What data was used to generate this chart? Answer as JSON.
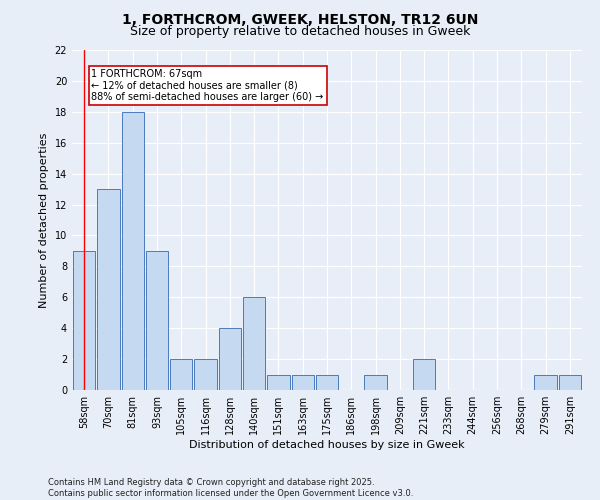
{
  "title": "1, FORTHCROM, GWEEK, HELSTON, TR12 6UN",
  "subtitle": "Size of property relative to detached houses in Gweek",
  "xlabel": "Distribution of detached houses by size in Gweek",
  "ylabel": "Number of detached properties",
  "categories": [
    "58sqm",
    "70sqm",
    "81sqm",
    "93sqm",
    "105sqm",
    "116sqm",
    "128sqm",
    "140sqm",
    "151sqm",
    "163sqm",
    "175sqm",
    "186sqm",
    "198sqm",
    "209sqm",
    "221sqm",
    "233sqm",
    "244sqm",
    "256sqm",
    "268sqm",
    "279sqm",
    "291sqm"
  ],
  "values": [
    9,
    13,
    18,
    9,
    2,
    2,
    4,
    6,
    1,
    1,
    1,
    0,
    1,
    0,
    2,
    0,
    0,
    0,
    0,
    1,
    1
  ],
  "bar_color": "#c5d9f0",
  "bar_edge_color": "#4a7abf",
  "background_color": "#e8eef8",
  "grid_color": "#ffffff",
  "ylim": [
    0,
    22
  ],
  "yticks": [
    0,
    2,
    4,
    6,
    8,
    10,
    12,
    14,
    16,
    18,
    20,
    22
  ],
  "annotation_text": "1 FORTHCROM: 67sqm\n← 12% of detached houses are smaller (8)\n88% of semi-detached houses are larger (60) →",
  "annotation_box_color": "#ffffff",
  "annotation_box_edgecolor": "#cc0000",
  "footer": "Contains HM Land Registry data © Crown copyright and database right 2025.\nContains public sector information licensed under the Open Government Licence v3.0.",
  "title_fontsize": 10,
  "subtitle_fontsize": 9,
  "tick_fontsize": 7,
  "ylabel_fontsize": 8,
  "xlabel_fontsize": 8,
  "footer_fontsize": 6,
  "annot_fontsize": 7
}
